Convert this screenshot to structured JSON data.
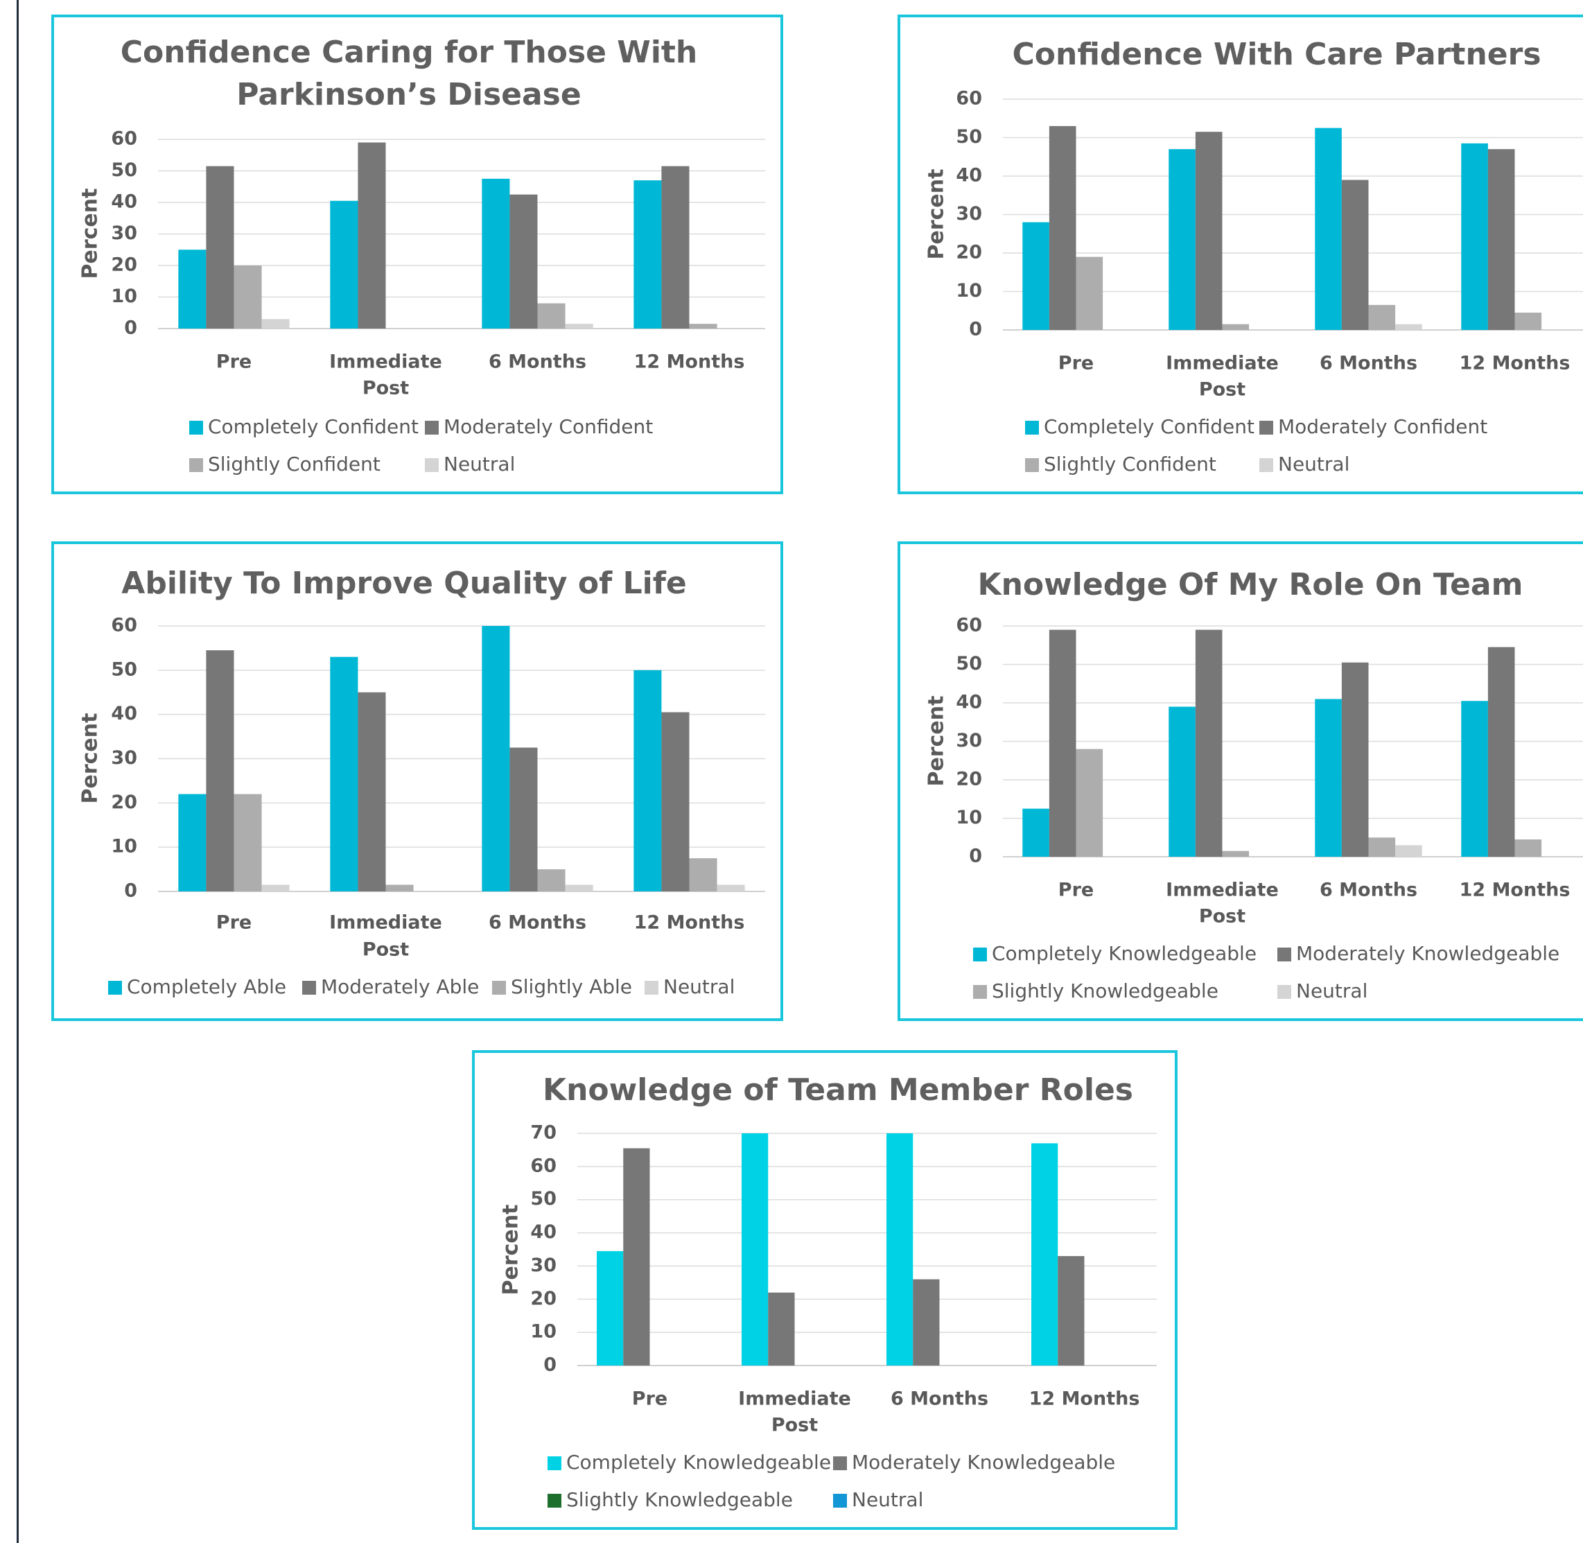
{
  "colors": {
    "completely": "#00b8d6",
    "moderately": "#777777",
    "slightly": "#adadad",
    "neutral": "#d4d4d4",
    "completely_team": "#00d2e6",
    "slightly_team": "#1e6e2e",
    "neutral_team": "#1296d6",
    "border": "#19c6dc"
  },
  "chart_data": [
    {
      "type": "bar",
      "title": "Confidence Caring for Those With Parkinson’s Disease",
      "title_lines": [
        "Confidence Caring for Those With",
        "Parkinson’s Disease"
      ],
      "ylabel": "Percent",
      "ylim": [
        0,
        60
      ],
      "yticks": [
        0,
        10,
        20,
        30,
        40,
        50,
        60
      ],
      "grid": true,
      "legend_position": "bottom",
      "categories": [
        "Pre",
        "Immediate Post",
        "6 Months",
        "12 Months"
      ],
      "category_lines": [
        [
          "Pre"
        ],
        [
          "Immediate",
          "Post"
        ],
        [
          "6 Months"
        ],
        [
          "12 Months"
        ]
      ],
      "series": [
        {
          "name": "Completely Confident",
          "values": [
            25,
            40.5,
            47.5,
            47
          ]
        },
        {
          "name": "Moderately Confident",
          "values": [
            51.5,
            59,
            42.5,
            51.5
          ]
        },
        {
          "name": "Slightly Confident",
          "values": [
            20,
            0,
            8,
            1.5
          ]
        },
        {
          "name": "Neutral",
          "values": [
            3,
            0,
            1.5,
            0
          ]
        }
      ]
    },
    {
      "type": "bar",
      "title": "Confidence With Care Partners",
      "title_lines": [
        "Confidence With Care Partners"
      ],
      "ylabel": "Percent",
      "ylim": [
        0,
        60
      ],
      "yticks": [
        0,
        10,
        20,
        30,
        40,
        50,
        60
      ],
      "grid": true,
      "legend_position": "bottom",
      "categories": [
        "Pre",
        "Immediate Post",
        "6 Months",
        "12 Months"
      ],
      "category_lines": [
        [
          "Pre"
        ],
        [
          "Immediate",
          "Post"
        ],
        [
          "6 Months"
        ],
        [
          "12 Months"
        ]
      ],
      "series": [
        {
          "name": "Completely Confident",
          "values": [
            28,
            47,
            52.5,
            48.5
          ]
        },
        {
          "name": "Moderately Confident",
          "values": [
            53,
            51.5,
            39,
            47
          ]
        },
        {
          "name": "Slightly Confident",
          "values": [
            19,
            1.5,
            6.5,
            4.5
          ]
        },
        {
          "name": "Neutral",
          "values": [
            0,
            0,
            1.5,
            0
          ]
        }
      ]
    },
    {
      "type": "bar",
      "title": "Ability To Improve Quality of Life",
      "title_lines": [
        "Ability To Improve Quality of Life"
      ],
      "ylabel": "Percent",
      "ylim": [
        0,
        60
      ],
      "yticks": [
        0,
        10,
        20,
        30,
        40,
        50,
        60
      ],
      "grid": true,
      "legend_position": "bottom",
      "categories": [
        "Pre",
        "Immediate Post",
        "6 Months",
        "12 Months"
      ],
      "category_lines": [
        [
          "Pre"
        ],
        [
          "Immediate",
          "Post"
        ],
        [
          "6 Months"
        ],
        [
          "12 Months"
        ]
      ],
      "series": [
        {
          "name": "Completely Able",
          "values": [
            22,
            53,
            60,
            50
          ]
        },
        {
          "name": "Moderately Able",
          "values": [
            54.5,
            45,
            32.5,
            40.5
          ]
        },
        {
          "name": "Slightly Able",
          "values": [
            22,
            1.5,
            5,
            7.5
          ]
        },
        {
          "name": "Neutral",
          "values": [
            1.5,
            0,
            1.5,
            1.5
          ]
        }
      ]
    },
    {
      "type": "bar",
      "title": "Knowledge Of My Role On Team",
      "title_lines": [
        "Knowledge Of My Role On Team"
      ],
      "ylabel": "Percent",
      "ylim": [
        0,
        60
      ],
      "yticks": [
        0,
        10,
        20,
        30,
        40,
        50,
        60
      ],
      "grid": true,
      "legend_position": "bottom",
      "categories": [
        "Pre",
        "Immediate Post",
        "6 Months",
        "12 Months"
      ],
      "category_lines": [
        [
          "Pre"
        ],
        [
          "Immediate",
          "Post"
        ],
        [
          "6 Months"
        ],
        [
          "12 Months"
        ]
      ],
      "series": [
        {
          "name": "Completely Knowledgeable",
          "values": [
            12.5,
            39,
            41,
            40.5
          ]
        },
        {
          "name": "Moderately Knowledgeable",
          "values": [
            59,
            59,
            50.5,
            54.5
          ]
        },
        {
          "name": "Slightly Knowledgeable",
          "values": [
            28,
            1.5,
            5,
            4.5
          ]
        },
        {
          "name": "Neutral",
          "values": [
            0,
            0,
            3,
            0
          ]
        }
      ]
    },
    {
      "type": "bar",
      "title": "Knowledge of Team Member Roles",
      "title_lines": [
        "Knowledge of Team Member Roles"
      ],
      "ylabel": "Percent",
      "ylim": [
        0,
        70
      ],
      "yticks": [
        0,
        10,
        20,
        30,
        40,
        50,
        60,
        70
      ],
      "grid": true,
      "legend_position": "bottom",
      "categories": [
        "Pre",
        "Immediate Post",
        "6 Months",
        "12 Months"
      ],
      "category_lines": [
        [
          "Pre"
        ],
        [
          "Immediate",
          "Post"
        ],
        [
          "6 Months"
        ],
        [
          "12 Months"
        ]
      ],
      "series": [
        {
          "name": "Completely Knowledgeable",
          "values": [
            34.5,
            70,
            70,
            67
          ]
        },
        {
          "name": "Moderately Knowledgeable",
          "values": [
            65.5,
            22,
            26,
            33
          ]
        },
        {
          "name": "Slightly Knowledgeable",
          "values": [
            0,
            0,
            0,
            0
          ]
        },
        {
          "name": "Neutral",
          "values": [
            0,
            0,
            0,
            0
          ]
        }
      ]
    }
  ]
}
